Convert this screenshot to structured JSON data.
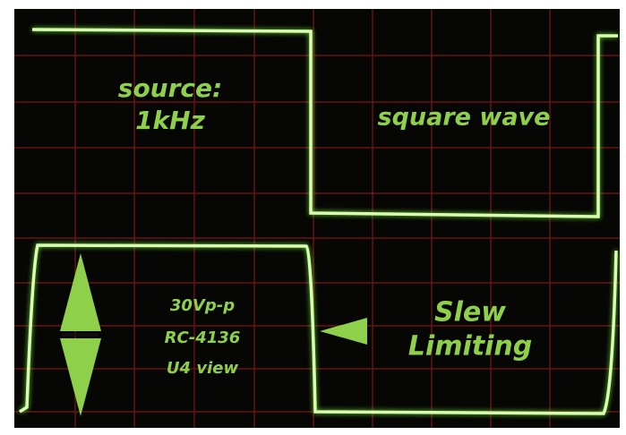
{
  "top_trace": {
    "label": [
      "source:",
      "1kHz"
    ],
    "caption": "square wave"
  },
  "bottom_trace": {
    "details": [
      "30Vp-p",
      "RC-4136",
      "U4 view"
    ],
    "caption": [
      "Slew",
      "Limiting"
    ]
  }
}
